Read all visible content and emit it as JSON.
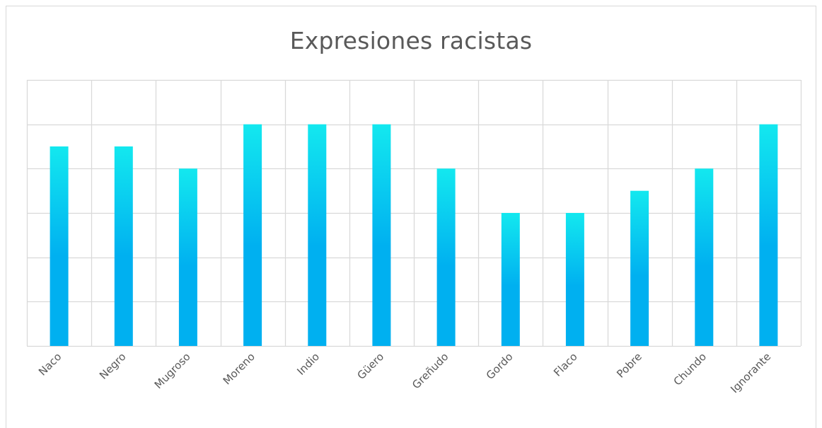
{
  "chart_data": {
    "type": "bar",
    "title": "Expresiones racistas",
    "xlabel": "",
    "ylabel": "",
    "categories": [
      "Naco",
      "Negro",
      "Mugroso",
      "Moreno",
      "Indio",
      "Güero",
      "Greñudo",
      "Gordo",
      "Flaco",
      "Pobre",
      "Chundo",
      "Ignorante"
    ],
    "values": [
      4.5,
      4.5,
      4,
      5,
      5,
      5,
      4,
      3,
      3,
      3.5,
      4,
      5
    ],
    "ylim": [
      0,
      6
    ],
    "y_tick_step": 1,
    "y_tick_labels_shown": false,
    "grid": {
      "horizontal": true,
      "vertical": true
    },
    "legend": "none",
    "colors": {
      "bar_top": "#13e8ef",
      "bar_bottom": "#00b0f0",
      "grid": "#d9d9d9",
      "text": "#595959"
    }
  }
}
